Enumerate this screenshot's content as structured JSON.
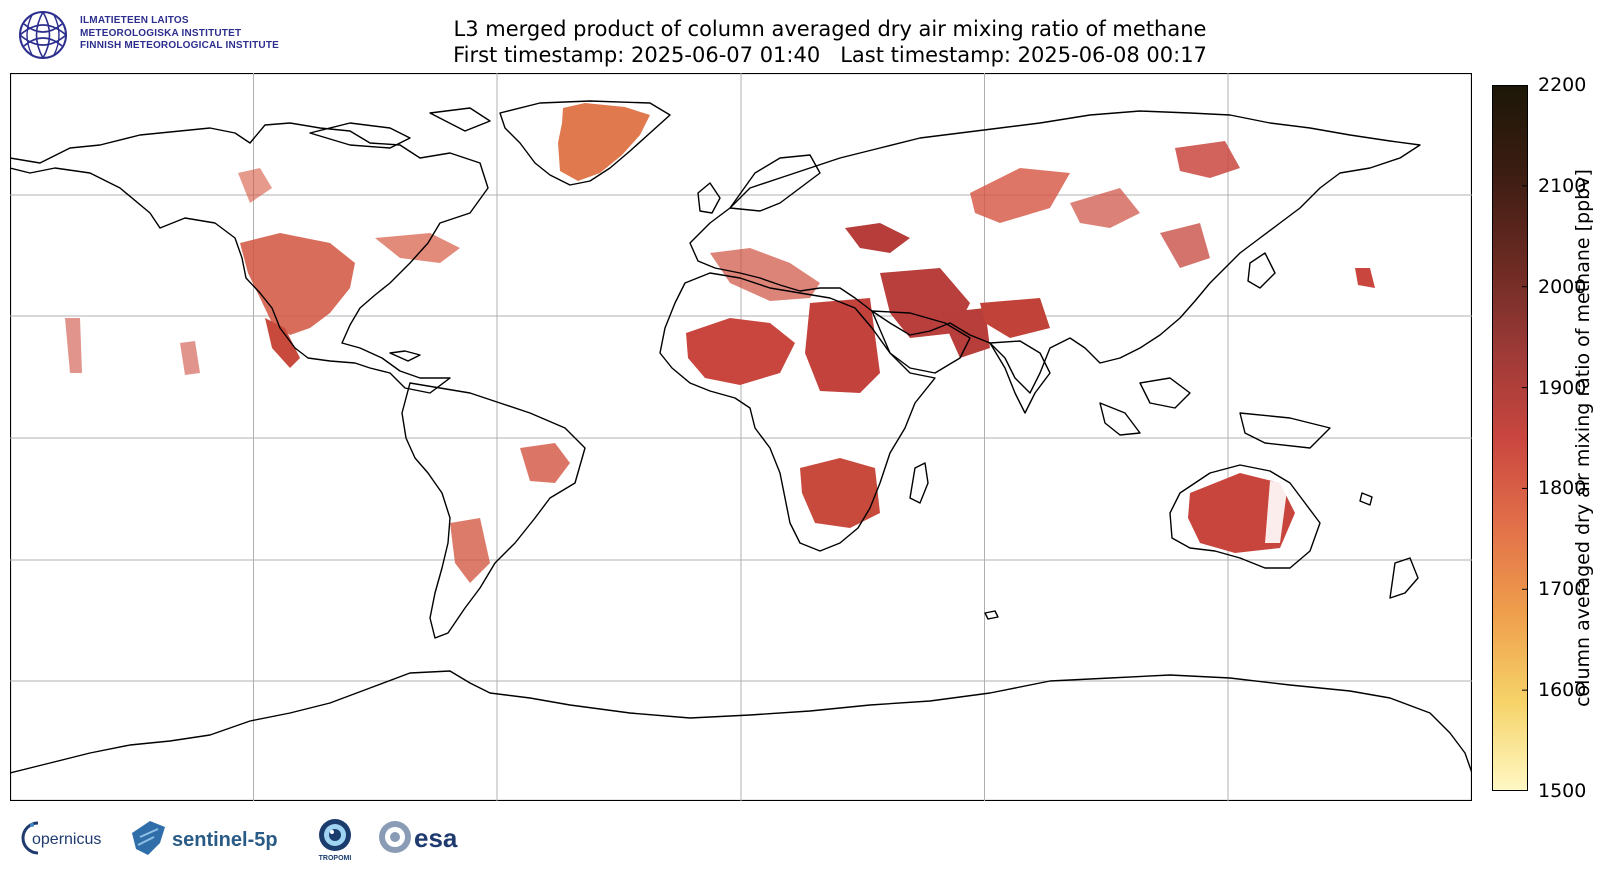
{
  "header": {
    "institute_lines": [
      "ILMATIETEEN LAITOS",
      "METEOROLOGISKA INSTITUTET",
      "FINNISH METEOROLOGICAL INSTITUTE"
    ],
    "title_line1": "L3 merged product of column averaged dry air mixing ratio of methane",
    "title_line2": "First timestamp: 2025-06-07 01:40   Last timestamp: 2025-06-08 00:17"
  },
  "colorbar": {
    "label": "column averaged dry air mixing ratio of methane [ppbv]",
    "min": 1500,
    "max": 2200,
    "ticks": [
      "2200",
      "2100",
      "2000",
      "1900",
      "1800",
      "1700",
      "1600",
      "1500"
    ],
    "colors": [
      "#fff8c4",
      "#f6d369",
      "#ef9f4c",
      "#e2704a",
      "#c9463f",
      "#9c3a37",
      "#6a2a22",
      "#3c1d12",
      "#1c1708"
    ]
  },
  "map": {
    "projection": "plate-carree",
    "gridlines": true,
    "grid_lon": [
      -120,
      -60,
      0,
      60,
      120
    ],
    "grid_lat": [
      -60,
      -30,
      0,
      30,
      60
    ],
    "coastline_color": "#000000"
  },
  "footer": {
    "logos": [
      "copernicus",
      "sentinel-5p",
      "tropomi",
      "esa"
    ],
    "copernicus": "opernicus",
    "sentinel": "sentinel-5p",
    "tropomi": "TROPOMI",
    "esa": "esa"
  }
}
